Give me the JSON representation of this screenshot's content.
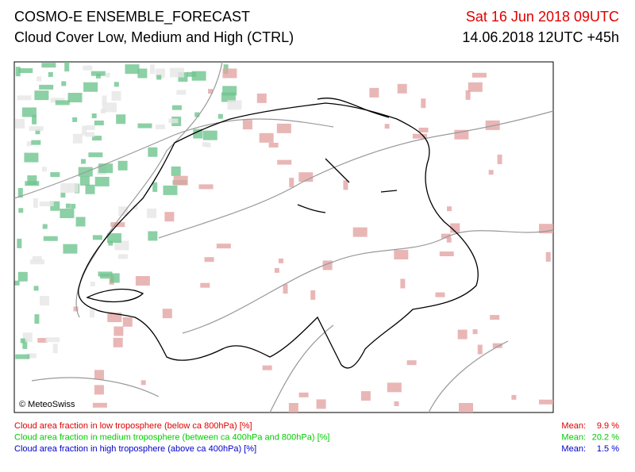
{
  "header": {
    "title": "COSMO-E ENSEMBLE_FORECAST",
    "subtitle": "Cloud Cover Low, Medium and High (CTRL)",
    "valid_time": "Sat 16 Jun 2018 09UTC",
    "run_time": "14.06.2018 12UTC +45h"
  },
  "map": {
    "credit": "© MeteoSwiss"
  },
  "legend": [
    {
      "label": "Cloud area fraction in low troposphere (below ca 800hPa) [%]",
      "mean_label": "Mean:",
      "mean": "9.9 %"
    },
    {
      "label": "Cloud area fraction in medium troposphere (between ca 400hPa and 800hPa) [%]",
      "mean_label": "Mean:",
      "mean": "20.2 %"
    },
    {
      "label": "Cloud area fraction in high troposphere (above ca 400hPa) [%]",
      "mean_label": "Mean:",
      "mean": "1.5 %"
    }
  ]
}
